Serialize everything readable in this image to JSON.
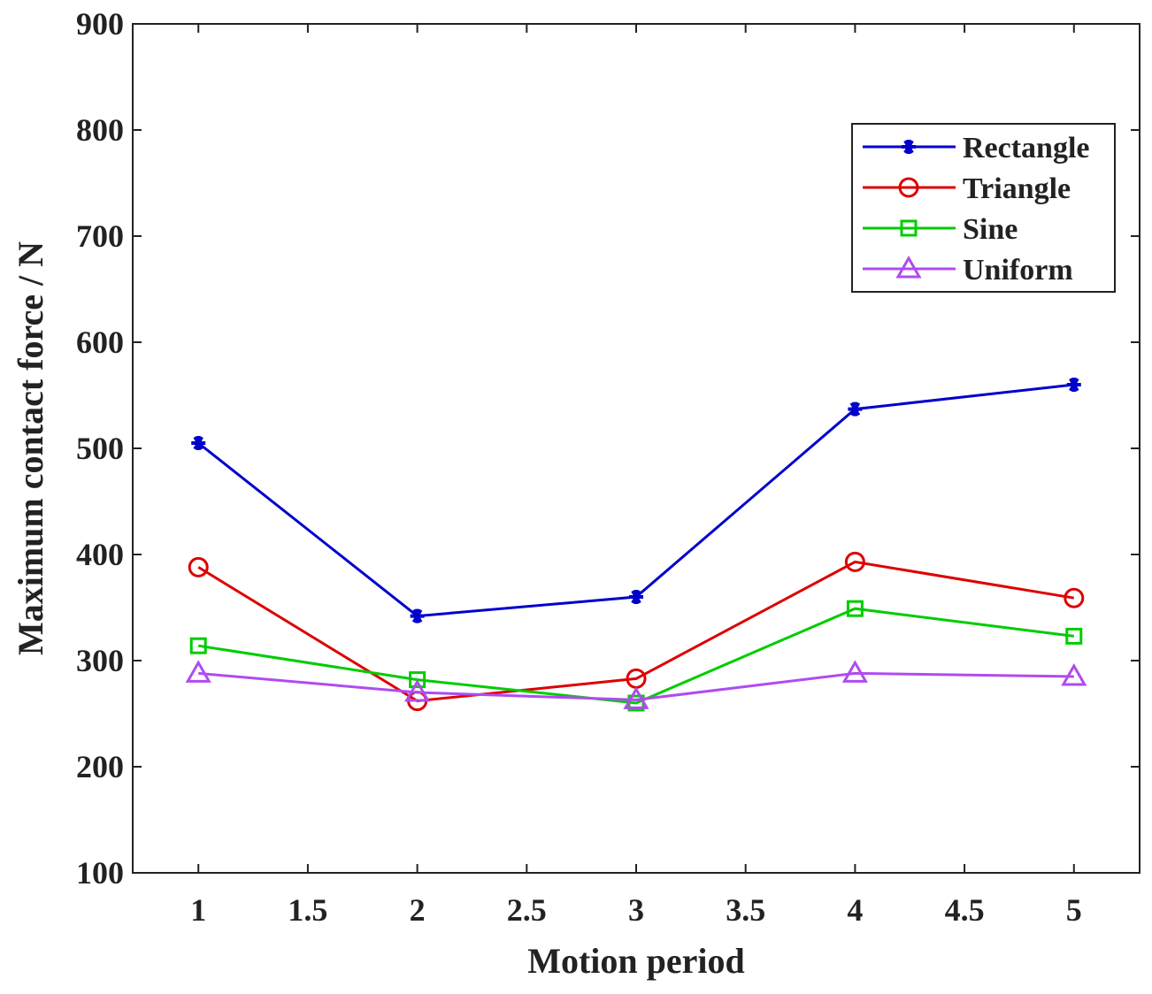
{
  "chart_data": {
    "type": "line",
    "title": "",
    "xlabel": "Motion period",
    "ylabel": "Maximum contact force / N",
    "xlim": [
      0.7,
      5.3
    ],
    "ylim": [
      100,
      900
    ],
    "x_ticks": [
      1,
      1.5,
      2,
      2.5,
      3,
      3.5,
      4,
      4.5,
      5
    ],
    "x_tick_labels": [
      "1",
      "1.5",
      "2",
      "2.5",
      "3",
      "3.5",
      "4",
      "4.5",
      "5"
    ],
    "y_ticks": [
      100,
      200,
      300,
      400,
      500,
      600,
      700,
      800,
      900
    ],
    "y_tick_labels": [
      "100",
      "200",
      "300",
      "400",
      "500",
      "600",
      "700",
      "800",
      "900"
    ],
    "grid": false,
    "legend_position": "top-right",
    "x": [
      1,
      2,
      3,
      4,
      5
    ],
    "series": [
      {
        "name": "Rectangle",
        "color": "#0000cc",
        "marker": "asterisk",
        "values": [
          505,
          342,
          360,
          537,
          560
        ]
      },
      {
        "name": "Triangle",
        "color": "#dd0000",
        "marker": "circle",
        "values": [
          388,
          262,
          283,
          393,
          359
        ]
      },
      {
        "name": "Sine",
        "color": "#00cc00",
        "marker": "square",
        "values": [
          314,
          282,
          260,
          349,
          323
        ]
      },
      {
        "name": "Uniform",
        "color": "#b04bf0",
        "marker": "triangle",
        "values": [
          288,
          270,
          263,
          288,
          285
        ]
      }
    ]
  }
}
